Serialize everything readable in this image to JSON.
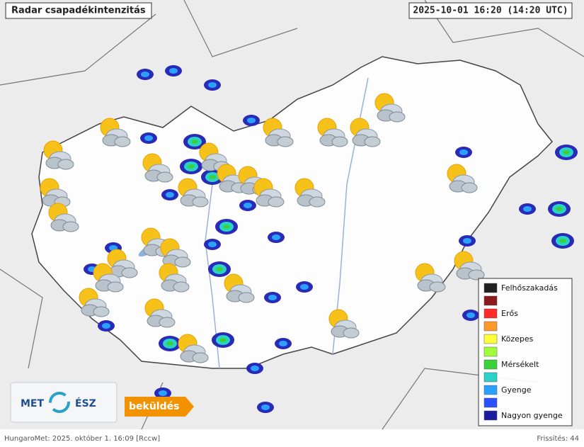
{
  "header": {
    "title": "Radar csapadékintenzitás",
    "timestamp": "2025-10-01 16:20 (14:20 UTC)"
  },
  "legend": {
    "items": [
      {
        "label": "Felhőszakadás",
        "color": "#222222"
      },
      {
        "label": null,
        "color": "#8b1a1a"
      },
      {
        "label": "Erős",
        "color": "#ff2a2a"
      },
      {
        "label": null,
        "color": "#ff9a2a"
      },
      {
        "label": "Közepes",
        "color": "#ffff3a"
      },
      {
        "label": null,
        "color": "#a0ff3a"
      },
      {
        "label": "Mérsékelt",
        "color": "#3ad23a"
      },
      {
        "label": null,
        "color": "#2ad2c8"
      },
      {
        "label": "Gyenge",
        "color": "#2aa0ff"
      },
      {
        "label": null,
        "color": "#2a50ff"
      },
      {
        "label": "Nagyon gyenge",
        "color": "#1c1ca0"
      }
    ]
  },
  "logo": {
    "left": "MET",
    "right": "ÉSZ"
  },
  "button": {
    "label": "beküldés"
  },
  "footer": {
    "source": "HungaroMet: 2025. október 1. 16:09 [Rccw]",
    "refresh": "Frissítés: 44"
  }
}
